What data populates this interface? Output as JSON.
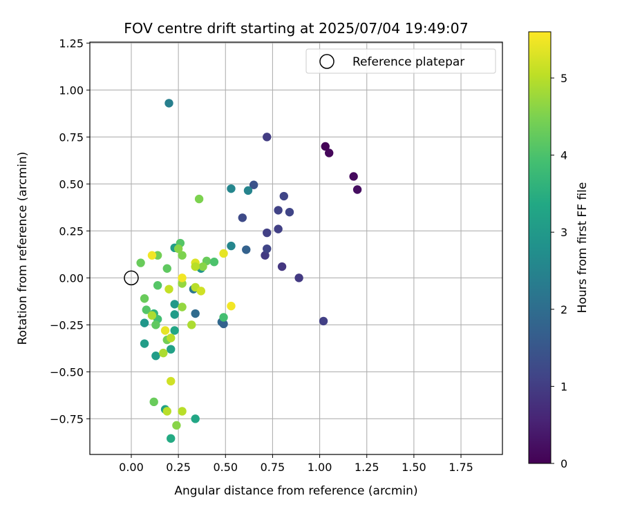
{
  "chart_data": {
    "type": "scatter",
    "title": "FOV centre drift starting at 2025/07/04 19:49:07",
    "xlabel": "Angular distance from reference (arcmin)",
    "ylabel": "Rotation from reference (arcmin)",
    "xlim": [
      -0.22,
      1.97
    ],
    "ylim": [
      -0.94,
      1.255
    ],
    "xticks": [
      0.0,
      0.25,
      0.5,
      0.75,
      1.0,
      1.25,
      1.5,
      1.75
    ],
    "xtick_labels": [
      "0.00",
      "0.25",
      "0.50",
      "0.75",
      "1.00",
      "1.25",
      "1.50",
      "1.75"
    ],
    "yticks": [
      -0.75,
      -0.5,
      -0.25,
      0.0,
      0.25,
      0.5,
      0.75,
      1.0,
      1.25
    ],
    "ytick_labels": [
      "−0.75",
      "−0.50",
      "−0.25",
      "0.00",
      "0.25",
      "0.50",
      "0.75",
      "1.00",
      "1.25"
    ],
    "grid": true,
    "colormap": "viridis",
    "colorbar": {
      "label": "Hours from first FF file",
      "range": [
        0,
        5.6
      ],
      "ticks": [
        0,
        1,
        2,
        3,
        4,
        5
      ],
      "tick_labels": [
        "0",
        "1",
        "2",
        "3",
        "4",
        "5"
      ]
    },
    "legend": {
      "placement": "top-right",
      "entries": [
        {
          "label": "Reference platepar",
          "marker": "open-circle"
        }
      ]
    },
    "reference_point": {
      "x": 0.0,
      "y": 0.0
    },
    "points": [
      {
        "x": 1.03,
        "y": 0.7,
        "h": 0.05
      },
      {
        "x": 1.05,
        "y": 0.665,
        "h": 0.1
      },
      {
        "x": 1.18,
        "y": 0.54,
        "h": 0.15
      },
      {
        "x": 1.2,
        "y": 0.47,
        "h": 0.2
      },
      {
        "x": 1.02,
        "y": -0.23,
        "h": 1.05
      },
      {
        "x": 0.89,
        "y": 0.0,
        "h": 0.95
      },
      {
        "x": 0.8,
        "y": 0.06,
        "h": 0.9
      },
      {
        "x": 0.71,
        "y": 0.12,
        "h": 0.95
      },
      {
        "x": 0.72,
        "y": 0.75,
        "h": 1.0
      },
      {
        "x": 0.72,
        "y": 0.24,
        "h": 1.05
      },
      {
        "x": 0.72,
        "y": 0.155,
        "h": 1.15
      },
      {
        "x": 0.78,
        "y": 0.26,
        "h": 1.05
      },
      {
        "x": 0.78,
        "y": 0.36,
        "h": 1.1
      },
      {
        "x": 0.81,
        "y": 0.435,
        "h": 1.15
      },
      {
        "x": 0.84,
        "y": 0.35,
        "h": 1.15
      },
      {
        "x": 0.65,
        "y": 0.495,
        "h": 1.4
      },
      {
        "x": 0.59,
        "y": 0.32,
        "h": 1.25
      },
      {
        "x": 0.61,
        "y": 0.15,
        "h": 1.75
      },
      {
        "x": 0.62,
        "y": 0.465,
        "h": 2.5
      },
      {
        "x": 0.53,
        "y": 0.475,
        "h": 2.55
      },
      {
        "x": 0.53,
        "y": 0.17,
        "h": 2.55
      },
      {
        "x": 0.48,
        "y": -0.235,
        "h": 1.9
      },
      {
        "x": 0.49,
        "y": -0.245,
        "h": 1.75
      },
      {
        "x": 0.34,
        "y": -0.19,
        "h": 1.95
      },
      {
        "x": 0.33,
        "y": -0.06,
        "h": 2.2
      },
      {
        "x": 0.2,
        "y": 0.93,
        "h": 2.4
      },
      {
        "x": 0.37,
        "y": 0.05,
        "h": 2.9
      },
      {
        "x": 0.23,
        "y": -0.14,
        "h": 3.0
      },
      {
        "x": 0.23,
        "y": -0.195,
        "h": 3.05
      },
      {
        "x": 0.23,
        "y": 0.16,
        "h": 3.1
      },
      {
        "x": 0.07,
        "y": -0.24,
        "h": 2.95
      },
      {
        "x": 0.07,
        "y": -0.35,
        "h": 3.1
      },
      {
        "x": 0.13,
        "y": -0.415,
        "h": 3.1
      },
      {
        "x": 0.21,
        "y": -0.38,
        "h": 3.2
      },
      {
        "x": 0.23,
        "y": -0.28,
        "h": 3.3
      },
      {
        "x": 0.18,
        "y": -0.7,
        "h": 3.2
      },
      {
        "x": 0.21,
        "y": -0.855,
        "h": 3.4
      },
      {
        "x": 0.34,
        "y": -0.75,
        "h": 3.3
      },
      {
        "x": 0.12,
        "y": -0.19,
        "h": 3.6
      },
      {
        "x": 0.14,
        "y": -0.22,
        "h": 3.9
      },
      {
        "x": 0.13,
        "y": -0.25,
        "h": 4.2
      },
      {
        "x": 0.08,
        "y": -0.17,
        "h": 4.1
      },
      {
        "x": 0.07,
        "y": -0.11,
        "h": 4.3
      },
      {
        "x": 0.14,
        "y": -0.04,
        "h": 4.1
      },
      {
        "x": 0.05,
        "y": 0.08,
        "h": 4.3
      },
      {
        "x": 0.14,
        "y": 0.12,
        "h": 4.4
      },
      {
        "x": 0.19,
        "y": 0.05,
        "h": 4.2
      },
      {
        "x": 0.26,
        "y": 0.185,
        "h": 4.1
      },
      {
        "x": 0.27,
        "y": 0.12,
        "h": 4.5
      },
      {
        "x": 0.25,
        "y": 0.155,
        "h": 4.6
      },
      {
        "x": 0.36,
        "y": 0.42,
        "h": 4.5
      },
      {
        "x": 0.4,
        "y": 0.09,
        "h": 4.3
      },
      {
        "x": 0.44,
        "y": 0.085,
        "h": 4.0
      },
      {
        "x": 0.49,
        "y": -0.21,
        "h": 3.9
      },
      {
        "x": 0.38,
        "y": 0.06,
        "h": 4.6
      },
      {
        "x": 0.27,
        "y": -0.03,
        "h": 4.7
      },
      {
        "x": 0.27,
        "y": -0.155,
        "h": 4.7
      },
      {
        "x": 0.19,
        "y": -0.33,
        "h": 4.4
      },
      {
        "x": 0.12,
        "y": -0.66,
        "h": 4.3
      },
      {
        "x": 0.24,
        "y": -0.785,
        "h": 4.6
      },
      {
        "x": 0.11,
        "y": -0.2,
        "h": 4.9
      },
      {
        "x": 0.17,
        "y": -0.4,
        "h": 4.9
      },
      {
        "x": 0.19,
        "y": -0.71,
        "h": 5.0
      },
      {
        "x": 0.27,
        "y": -0.71,
        "h": 5.0
      },
      {
        "x": 0.21,
        "y": -0.55,
        "h": 5.2
      },
      {
        "x": 0.21,
        "y": -0.32,
        "h": 5.0
      },
      {
        "x": 0.18,
        "y": -0.28,
        "h": 5.4
      },
      {
        "x": 0.2,
        "y": -0.06,
        "h": 5.1
      },
      {
        "x": 0.32,
        "y": -0.25,
        "h": 4.9
      },
      {
        "x": 0.34,
        "y": -0.05,
        "h": 5.0
      },
      {
        "x": 0.37,
        "y": -0.07,
        "h": 5.2
      },
      {
        "x": 0.34,
        "y": 0.08,
        "h": 5.3
      },
      {
        "x": 0.34,
        "y": 0.06,
        "h": 5.0
      },
      {
        "x": 0.27,
        "y": 0.0,
        "h": 5.5
      },
      {
        "x": 0.11,
        "y": 0.12,
        "h": 5.5
      },
      {
        "x": 0.49,
        "y": 0.13,
        "h": 5.4
      },
      {
        "x": 0.53,
        "y": -0.15,
        "h": 5.5
      }
    ]
  }
}
